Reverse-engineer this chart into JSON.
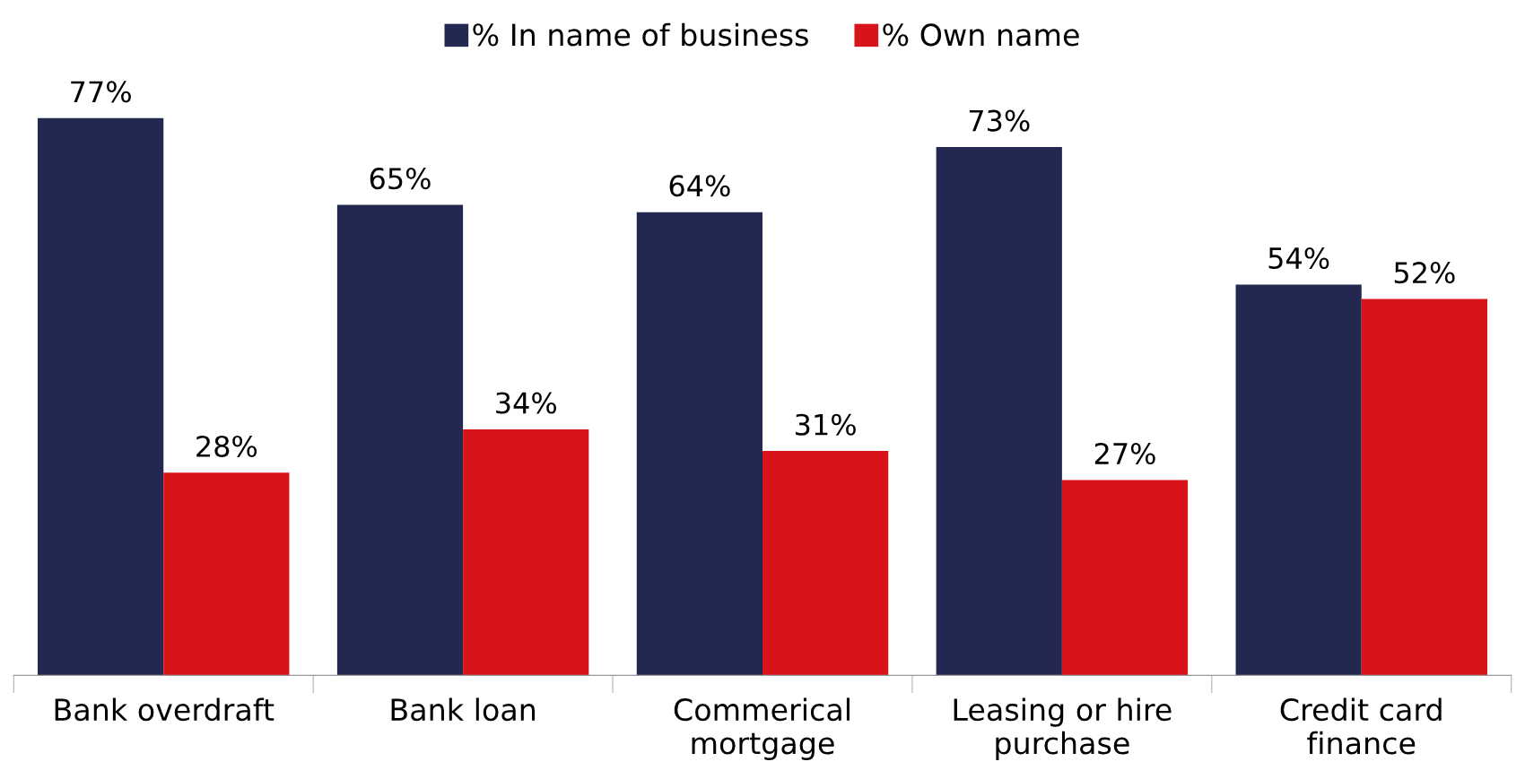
{
  "chart_data": {
    "type": "bar",
    "categories": [
      "Bank overdraft",
      "Bank loan",
      "Commerical\nmortgage",
      "Leasing or hire\npurchase",
      "Credit card\nfinance"
    ],
    "series": [
      {
        "name": "% In name of business",
        "color": "#222850",
        "values": [
          77,
          65,
          64,
          73,
          54
        ],
        "value_labels": [
          "77%",
          "65%",
          "64%",
          "73%",
          "54%"
        ]
      },
      {
        "name": "% Own name",
        "color": "#d7141a",
        "values": [
          28,
          34,
          31,
          27,
          52
        ],
        "value_labels": [
          "28%",
          "34%",
          "31%",
          "27%",
          "52%"
        ]
      }
    ],
    "legend": "top",
    "grid": false
  }
}
